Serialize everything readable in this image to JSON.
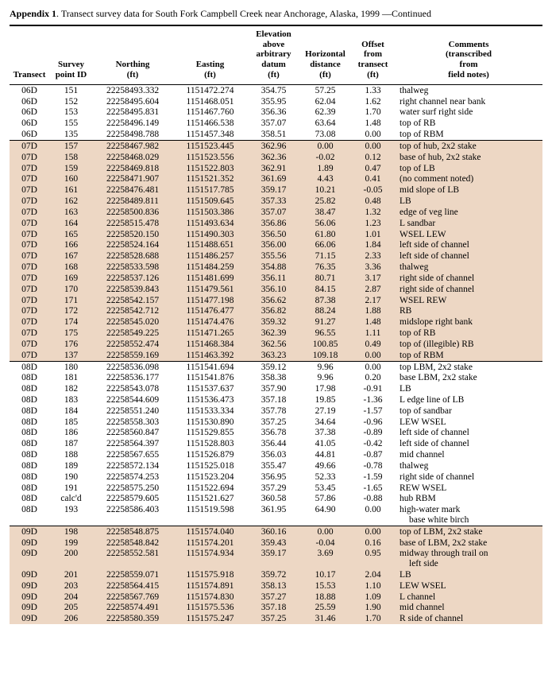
{
  "title_prefix": "Appendix 1",
  "title_rest": ". Transect survey data for South Fork Campbell Creek near Anchorage, Alaska, 1999 —Continued",
  "columns": [
    {
      "h": "Transect"
    },
    {
      "h": "Survey\npoint ID"
    },
    {
      "h": "Northing\n(ft)"
    },
    {
      "h": "Easting\n(ft)"
    },
    {
      "h": "Elevation\nabove\narbitrary\ndatum\n(ft)"
    },
    {
      "h": "Horizontal\ndistance\n(ft)"
    },
    {
      "h": "Offset\nfrom\ntransect\n(ft)"
    },
    {
      "h": "Comments\n(transcribed\nfrom\nfield notes)"
    }
  ],
  "rows": [
    {
      "g": 0,
      "t": "06D",
      "id": "151",
      "n": "22258493.332",
      "e": "1151472.274",
      "el": "354.75",
      "hd": "57.25",
      "off": "1.33",
      "c": "thalweg"
    },
    {
      "g": 0,
      "t": "06D",
      "id": "152",
      "n": "22258495.604",
      "e": "1151468.051",
      "el": "355.95",
      "hd": "62.04",
      "off": "1.62",
      "c": "right channel near bank"
    },
    {
      "g": 0,
      "t": "06D",
      "id": "153",
      "n": "22258495.831",
      "e": "1151467.760",
      "el": "356.36",
      "hd": "62.39",
      "off": "1.70",
      "c": "water surf right side"
    },
    {
      "g": 0,
      "t": "06D",
      "id": "155",
      "n": "22258496.149",
      "e": "1151466.538",
      "el": "357.07",
      "hd": "63.64",
      "off": "1.48",
      "c": "top of RB"
    },
    {
      "g": 0,
      "t": "06D",
      "id": "135",
      "n": "22258498.788",
      "e": "1151457.348",
      "el": "358.51",
      "hd": "73.08",
      "off": "0.00",
      "c": "top of RBM"
    },
    {
      "g": 1,
      "t": "07D",
      "id": "157",
      "n": "22258467.982",
      "e": "1151523.445",
      "el": "362.96",
      "hd": "0.00",
      "off": "0.00",
      "c": "top of hub, 2x2 stake"
    },
    {
      "g": 1,
      "t": "07D",
      "id": "158",
      "n": "22258468.029",
      "e": "1151523.556",
      "el": "362.36",
      "hd": "-0.02",
      "off": "0.12",
      "c": "base of hub, 2x2 stake"
    },
    {
      "g": 1,
      "t": "07D",
      "id": "159",
      "n": "22258469.818",
      "e": "1151522.803",
      "el": "362.91",
      "hd": "1.89",
      "off": "0.47",
      "c": "top of LB"
    },
    {
      "g": 1,
      "t": "07D",
      "id": "160",
      "n": "22258471.907",
      "e": "1151521.352",
      "el": "361.69",
      "hd": "4.43",
      "off": "0.41",
      "c": "(no comment noted)"
    },
    {
      "g": 1,
      "t": "07D",
      "id": "161",
      "n": "22258476.481",
      "e": "1151517.785",
      "el": "359.17",
      "hd": "10.21",
      "off": "-0.05",
      "c": "mid slope of LB"
    },
    {
      "g": 1,
      "t": "07D",
      "id": "162",
      "n": "22258489.811",
      "e": "1151509.645",
      "el": "357.33",
      "hd": "25.82",
      "off": "0.48",
      "c": "LB"
    },
    {
      "g": 1,
      "t": "07D",
      "id": "163",
      "n": "22258500.836",
      "e": "1151503.386",
      "el": "357.07",
      "hd": "38.47",
      "off": "1.32",
      "c": "edge of veg line"
    },
    {
      "g": 1,
      "t": "07D",
      "id": "164",
      "n": "22258515.478",
      "e": "1151493.634",
      "el": "356.86",
      "hd": "56.06",
      "off": "1.23",
      "c": "L sandbar"
    },
    {
      "g": 1,
      "t": "07D",
      "id": "165",
      "n": "22258520.150",
      "e": "1151490.303",
      "el": "356.50",
      "hd": "61.80",
      "off": "1.01",
      "c": "WSEL LEW"
    },
    {
      "g": 1,
      "t": "07D",
      "id": "166",
      "n": "22258524.164",
      "e": "1151488.651",
      "el": "356.00",
      "hd": "66.06",
      "off": "1.84",
      "c": "left side of channel"
    },
    {
      "g": 1,
      "t": "07D",
      "id": "167",
      "n": "22258528.688",
      "e": "1151486.257",
      "el": "355.56",
      "hd": "71.15",
      "off": "2.33",
      "c": "left side of channel"
    },
    {
      "g": 1,
      "t": "07D",
      "id": "168",
      "n": "22258533.598",
      "e": "1151484.259",
      "el": "354.88",
      "hd": "76.35",
      "off": "3.36",
      "c": "thalweg"
    },
    {
      "g": 1,
      "t": "07D",
      "id": "169",
      "n": "22258537.126",
      "e": "1151481.699",
      "el": "356.11",
      "hd": "80.71",
      "off": "3.17",
      "c": "right side of channel"
    },
    {
      "g": 1,
      "t": "07D",
      "id": "170",
      "n": "22258539.843",
      "e": "1151479.561",
      "el": "356.10",
      "hd": "84.15",
      "off": "2.87",
      "c": "right side of channel"
    },
    {
      "g": 1,
      "t": "07D",
      "id": "171",
      "n": "22258542.157",
      "e": "1151477.198",
      "el": "356.62",
      "hd": "87.38",
      "off": "2.17",
      "c": "WSEL REW"
    },
    {
      "g": 1,
      "t": "07D",
      "id": "172",
      "n": "22258542.712",
      "e": "1151476.477",
      "el": "356.82",
      "hd": "88.24",
      "off": "1.88",
      "c": "RB"
    },
    {
      "g": 1,
      "t": "07D",
      "id": "174",
      "n": "22258545.020",
      "e": "1151474.476",
      "el": "359.32",
      "hd": "91.27",
      "off": "1.48",
      "c": "midslope right bank"
    },
    {
      "g": 1,
      "t": "07D",
      "id": "175",
      "n": "22258549.225",
      "e": "1151471.265",
      "el": "362.39",
      "hd": "96.55",
      "off": "1.11",
      "c": "top of RB"
    },
    {
      "g": 1,
      "t": "07D",
      "id": "176",
      "n": "22258552.474",
      "e": "1151468.384",
      "el": "362.56",
      "hd": "100.85",
      "off": "0.49",
      "c": "top of (illegible) RB"
    },
    {
      "g": 1,
      "t": "07D",
      "id": "137",
      "n": "22258559.169",
      "e": "1151463.392",
      "el": "363.23",
      "hd": "109.18",
      "off": "0.00",
      "c": "top of RBM"
    },
    {
      "g": 2,
      "t": "08D",
      "id": "180",
      "n": "22258536.098",
      "e": "1151541.694",
      "el": "359.12",
      "hd": "9.96",
      "off": "0.00",
      "c": "top LBM, 2x2 stake"
    },
    {
      "g": 2,
      "t": "08D",
      "id": "181",
      "n": "22258536.177",
      "e": "1151541.876",
      "el": "358.38",
      "hd": "9.96",
      "off": "0.20",
      "c": "base LBM, 2x2 stake"
    },
    {
      "g": 2,
      "t": "08D",
      "id": "182",
      "n": "22258543.078",
      "e": "1151537.637",
      "el": "357.90",
      "hd": "17.98",
      "off": "-0.91",
      "c": "LB"
    },
    {
      "g": 2,
      "t": "08D",
      "id": "183",
      "n": "22258544.609",
      "e": "1151536.473",
      "el": "357.18",
      "hd": "19.85",
      "off": "-1.36",
      "c": "L edge line of LB"
    },
    {
      "g": 2,
      "t": "08D",
      "id": "184",
      "n": "22258551.240",
      "e": "1151533.334",
      "el": "357.78",
      "hd": "27.19",
      "off": "-1.57",
      "c": "top of sandbar"
    },
    {
      "g": 2,
      "t": "08D",
      "id": "185",
      "n": "22258558.303",
      "e": "1151530.890",
      "el": "357.25",
      "hd": "34.64",
      "off": "-0.96",
      "c": "LEW WSEL"
    },
    {
      "g": 2,
      "t": "08D",
      "id": "186",
      "n": "22258560.847",
      "e": "1151529.855",
      "el": "356.78",
      "hd": "37.38",
      "off": "-0.89",
      "c": "left side of channel"
    },
    {
      "g": 2,
      "t": "08D",
      "id": "187",
      "n": "22258564.397",
      "e": "1151528.803",
      "el": "356.44",
      "hd": "41.05",
      "off": "-0.42",
      "c": "left side of channel"
    },
    {
      "g": 2,
      "t": "08D",
      "id": "188",
      "n": "22258567.655",
      "e": "1151526.879",
      "el": "356.03",
      "hd": "44.81",
      "off": "-0.87",
      "c": "mid channel"
    },
    {
      "g": 2,
      "t": "08D",
      "id": "189",
      "n": "22258572.134",
      "e": "1151525.018",
      "el": "355.47",
      "hd": "49.66",
      "off": "-0.78",
      "c": "thalweg"
    },
    {
      "g": 2,
      "t": "08D",
      "id": "190",
      "n": "22258574.253",
      "e": "1151523.204",
      "el": "356.95",
      "hd": "52.33",
      "off": "-1.59",
      "c": "right side of channel"
    },
    {
      "g": 2,
      "t": "08D",
      "id": "191",
      "n": "22258575.250",
      "e": "1151522.694",
      "el": "357.29",
      "hd": "53.45",
      "off": "-1.65",
      "c": "REW WSEL"
    },
    {
      "g": 2,
      "t": "08D",
      "id": "calc'd",
      "n": "22258579.605",
      "e": "1151521.627",
      "el": "360.58",
      "hd": "57.86",
      "off": "-0.88",
      "c": "hub RBM"
    },
    {
      "g": 2,
      "t": "08D",
      "id": "193",
      "n": "22258586.403",
      "e": "1151519.598",
      "el": "361.95",
      "hd": "64.90",
      "off": "0.00",
      "c": "high-water mark\n  base white birch"
    },
    {
      "g": 3,
      "t": "09D",
      "id": "198",
      "n": "22258548.875",
      "e": "1151574.040",
      "el": "360.16",
      "hd": "0.00",
      "off": "0.00",
      "c": "top of LBM, 2x2 stake"
    },
    {
      "g": 3,
      "t": "09D",
      "id": "199",
      "n": "22258548.842",
      "e": "1151574.201",
      "el": "359.43",
      "hd": "-0.04",
      "off": "0.16",
      "c": "base of LBM, 2x2 stake"
    },
    {
      "g": 3,
      "t": "09D",
      "id": "200",
      "n": "22258552.581",
      "e": "1151574.934",
      "el": "359.17",
      "hd": "3.69",
      "off": "0.95",
      "c": "midway through trail on\n  left side"
    },
    {
      "g": 3,
      "t": "09D",
      "id": "201",
      "n": "22258559.071",
      "e": "1151575.918",
      "el": "359.72",
      "hd": "10.17",
      "off": "2.04",
      "c": "LB"
    },
    {
      "g": 3,
      "t": "09D",
      "id": "203",
      "n": "22258564.415",
      "e": "1151574.891",
      "el": "358.13",
      "hd": "15.53",
      "off": "1.10",
      "c": "LEW WSEL"
    },
    {
      "g": 3,
      "t": "09D",
      "id": "204",
      "n": "22258567.769",
      "e": "1151574.830",
      "el": "357.27",
      "hd": "18.88",
      "off": "1.09",
      "c": "L channel"
    },
    {
      "g": 3,
      "t": "09D",
      "id": "205",
      "n": "22258574.491",
      "e": "1151575.536",
      "el": "357.18",
      "hd": "25.59",
      "off": "1.90",
      "c": "mid channel"
    },
    {
      "g": 3,
      "t": "09D",
      "id": "206",
      "n": "22258580.359",
      "e": "1151575.247",
      "el": "357.25",
      "hd": "31.46",
      "off": "1.70",
      "c": "R side of channel"
    }
  ],
  "shaded_groups": [
    1,
    3
  ]
}
